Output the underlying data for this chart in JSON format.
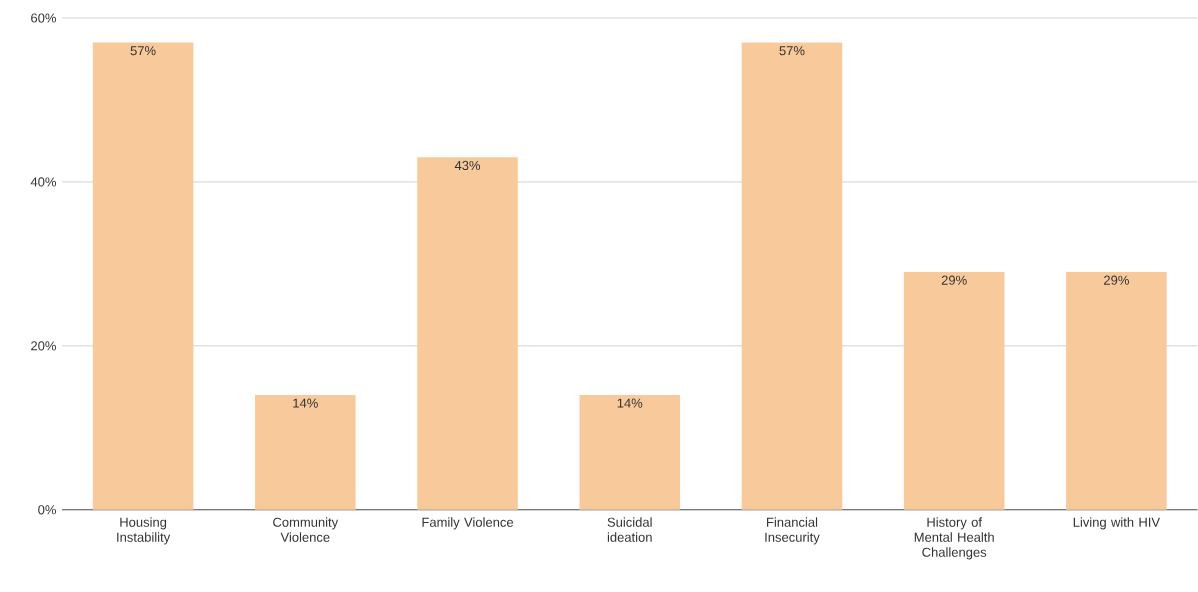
{
  "chart_data": {
    "type": "bar",
    "categories": [
      "Housing Instability",
      "Community Violence",
      "Family Violence",
      "Suicidal ideation",
      "Financial Insecurity",
      "History of Mental Health Challenges",
      "Living with HIV"
    ],
    "values": [
      57,
      14,
      43,
      14,
      57,
      29,
      29
    ],
    "value_labels": [
      "57%",
      "14%",
      "43%",
      "14%",
      "57%",
      "29%",
      "29%"
    ],
    "color": "#f8c99b",
    "ylim": [
      0,
      60
    ],
    "yticks": [
      {
        "value": 0,
        "label": "0%"
      },
      {
        "value": 20,
        "label": "20%"
      },
      {
        "value": 40,
        "label": "40%"
      },
      {
        "value": 60,
        "label": "60%"
      }
    ],
    "grid": "y"
  }
}
